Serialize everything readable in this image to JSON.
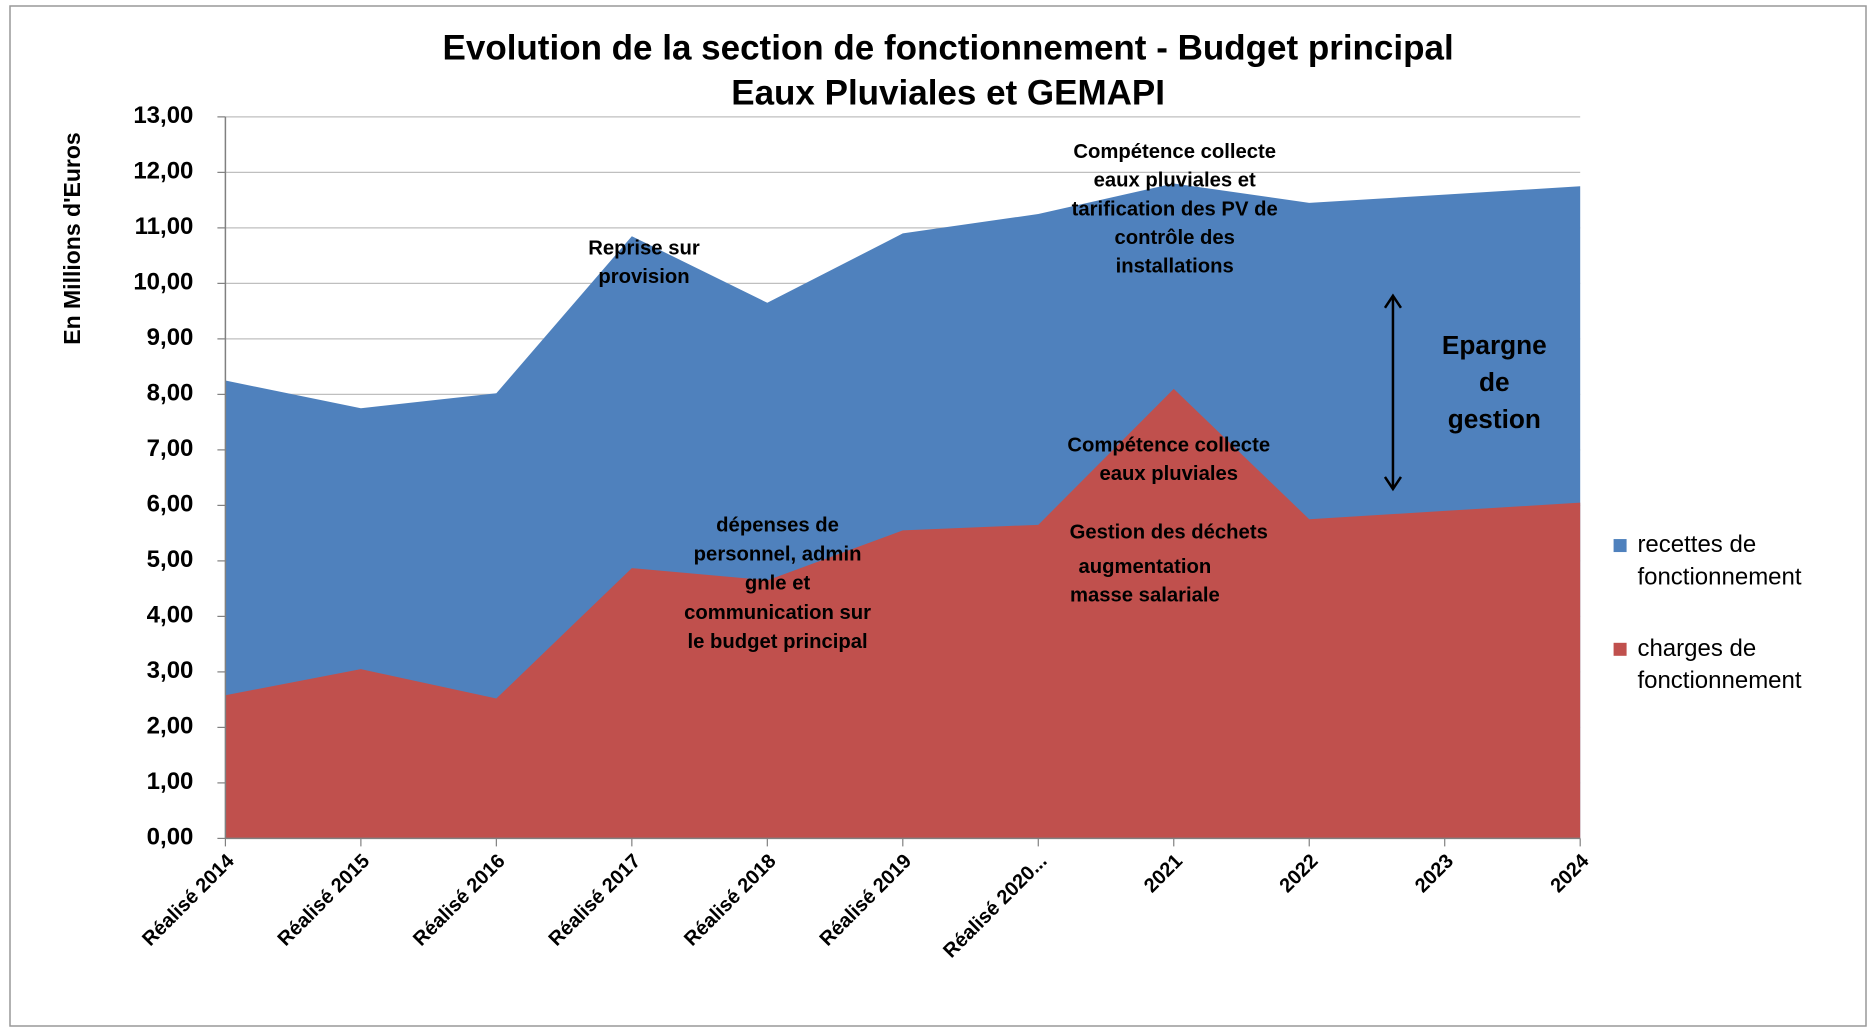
{
  "chart_data": {
    "type": "area",
    "title": [
      "Evolution de la section de fonctionnement - Budget principal",
      "Eaux Pluviales et GEMAPI"
    ],
    "y_label": "En Millions d'Euros",
    "categories": [
      "Réalisé 2014",
      "Réalisé 2015",
      "Réalisé 2016",
      "Réalisé 2017",
      "Réalisé 2018",
      "Réalisé 2019",
      "Réalisé 2020...",
      "2021",
      "2022",
      "2023",
      "2024"
    ],
    "series": [
      {
        "name": "recettes de fonctionnement",
        "color": "#4f81bd",
        "values": [
          8.25,
          7.75,
          8.02,
          10.85,
          9.65,
          10.9,
          11.25,
          11.8,
          11.45,
          11.6,
          11.75
        ]
      },
      {
        "name": "charges de fonctionnement",
        "color": "#c0504d",
        "values": [
          2.58,
          3.05,
          2.52,
          4.87,
          4.65,
          5.55,
          5.65,
          8.1,
          5.75,
          5.9,
          6.05
        ]
      }
    ],
    "ylim": [
      0,
      13
    ],
    "yticks": [
      {
        "value": 0,
        "label": "0,00"
      },
      {
        "value": 1,
        "label": "1,00"
      },
      {
        "value": 2,
        "label": "2,00"
      },
      {
        "value": 3,
        "label": "3,00"
      },
      {
        "value": 4,
        "label": "4,00"
      },
      {
        "value": 5,
        "label": "5,00"
      },
      {
        "value": 6,
        "label": "6,00"
      },
      {
        "value": 7,
        "label": "7,00"
      },
      {
        "value": 8,
        "label": "8,00"
      },
      {
        "value": 9,
        "label": "9,00"
      },
      {
        "value": 10,
        "label": "10,00"
      },
      {
        "value": 11,
        "label": "11,00"
      },
      {
        "value": 12,
        "label": "12,00"
      },
      {
        "value": 13,
        "label": "13,00"
      }
    ],
    "grid": true,
    "legend": "right",
    "annotations": [
      {
        "lines": [
          "Reprise sur",
          "provision"
        ]
      },
      {
        "lines": [
          "Compétence collecte",
          "eaux pluviales et",
          "tarification des PV de",
          "contrôle des",
          "installations"
        ]
      },
      {
        "lines": [
          "Epargne",
          "de",
          "gestion"
        ]
      },
      {
        "lines": [
          "Compétence collecte",
          "eaux pluviales"
        ]
      },
      {
        "lines": [
          "dépenses de",
          "personnel, admin",
          "gnle et",
          "communication sur",
          "le budget principal"
        ]
      },
      {
        "lines": [
          "Gestion des déchets"
        ]
      },
      {
        "lines": [
          "augmentation",
          "masse salariale"
        ]
      }
    ]
  }
}
